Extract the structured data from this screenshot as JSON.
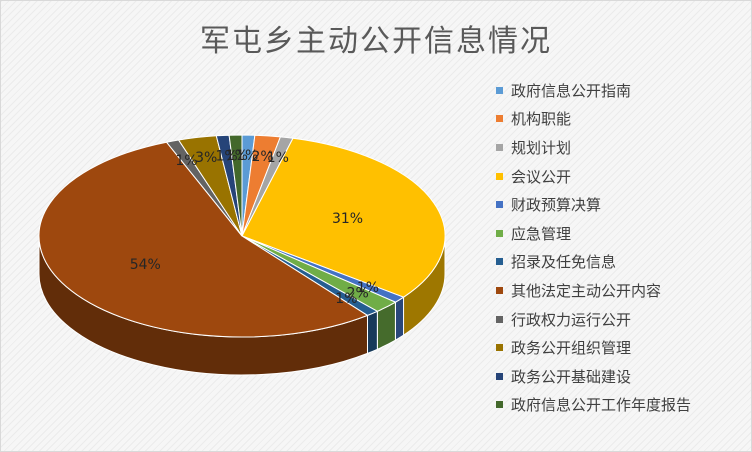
{
  "chart_data": {
    "type": "pie",
    "title": "军屯乡主动公开信息情况",
    "legend_position": "right",
    "slices": [
      {
        "name": "政府信息公开指南",
        "value": 1,
        "label": "1%",
        "color": "#5B9BD5"
      },
      {
        "name": "机构职能",
        "value": 2,
        "label": "2%",
        "color": "#ED7D31"
      },
      {
        "name": "规划计划",
        "value": 1,
        "label": "1%",
        "color": "#A5A5A5"
      },
      {
        "name": "会议公开",
        "value": 31,
        "label": "31%",
        "color": "#FFC000"
      },
      {
        "name": "财政预算决算",
        "value": 1,
        "label": "1%",
        "color": "#4472C4"
      },
      {
        "name": "应急管理",
        "value": 2,
        "label": "2%",
        "color": "#70AD47"
      },
      {
        "name": "招录及任免信息",
        "value": 1,
        "label": "1%",
        "color": "#255E91"
      },
      {
        "name": "其他法定主动公开内容",
        "value": 54,
        "label": "54%",
        "color": "#9E480E"
      },
      {
        "name": "行政权力运行公开",
        "value": 1,
        "label": "1%",
        "color": "#636363"
      },
      {
        "name": "政务公开组织管理",
        "value": 3,
        "label": "3%",
        "color": "#997300"
      },
      {
        "name": "政务公开基础建设",
        "value": 1,
        "label": "1%",
        "color": "#264478"
      },
      {
        "name": "政府信息公开工作年度报告",
        "value": 1,
        "label": "1%",
        "color": "#43682B"
      }
    ]
  }
}
